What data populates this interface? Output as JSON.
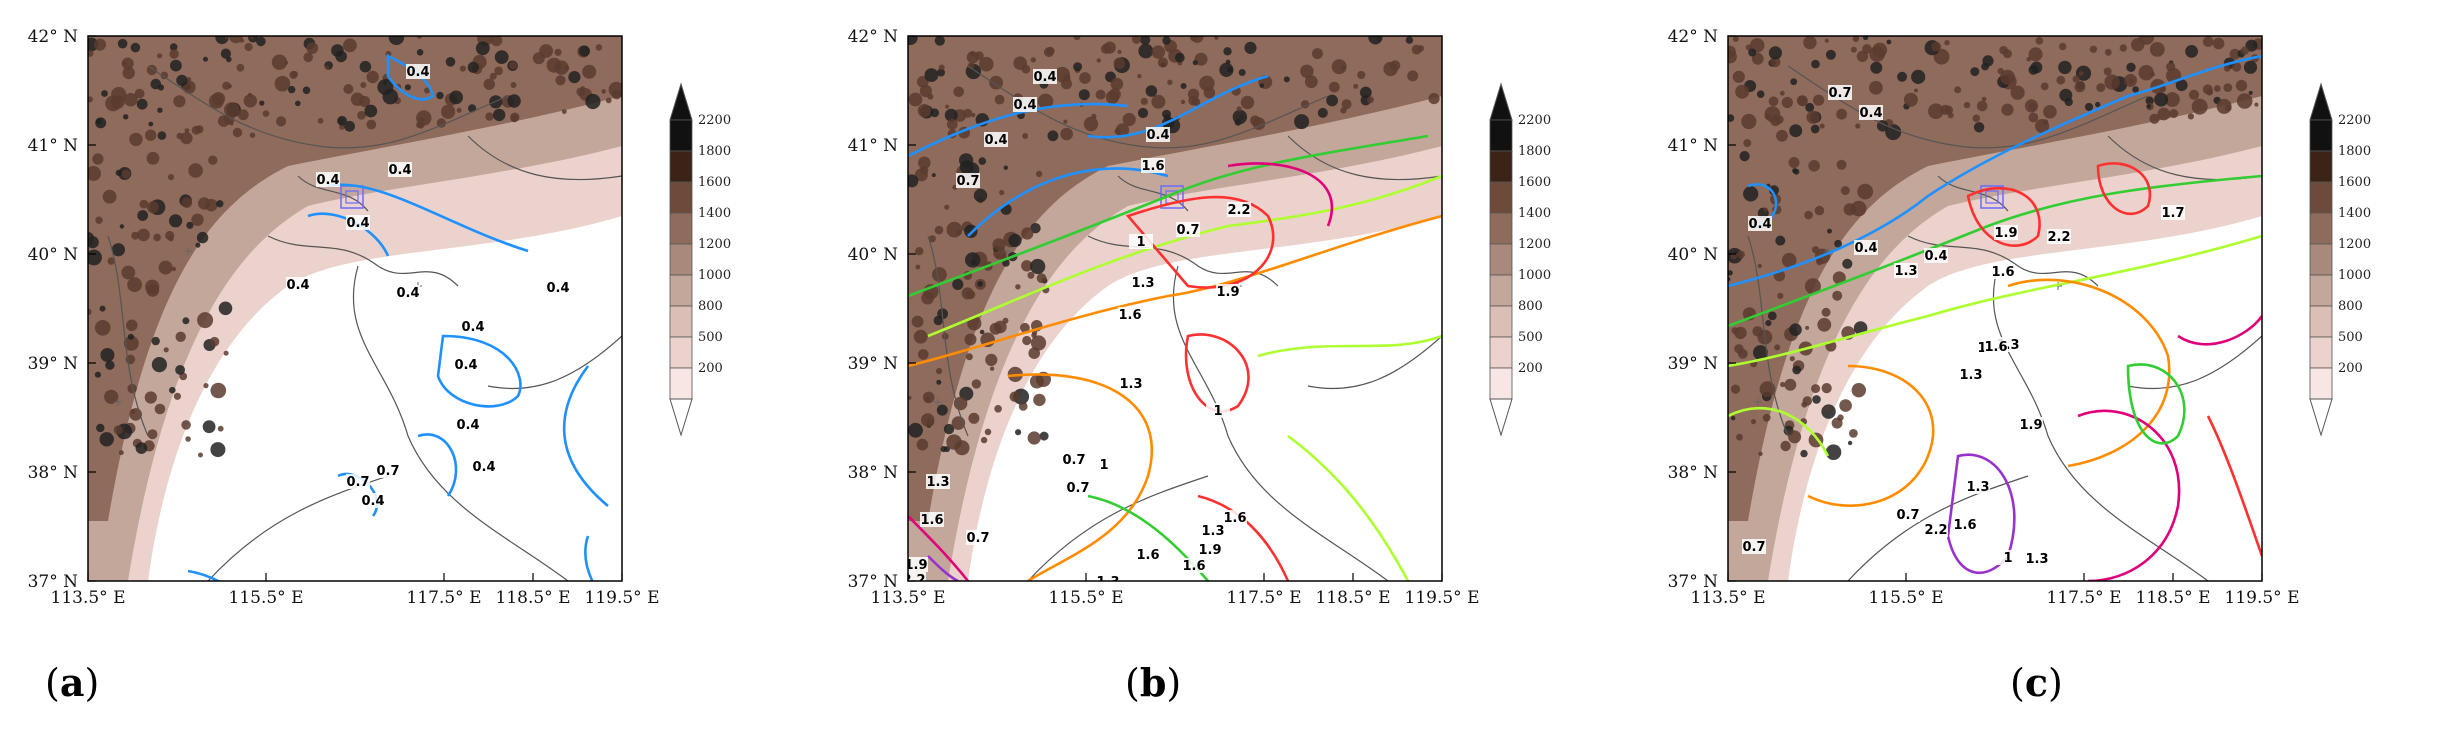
{
  "panels": [
    {
      "id": "a",
      "caption_letter": "a",
      "contour_labels": [
        "0.4",
        "0.4",
        "0.4",
        "0.4",
        "0.4",
        "0.4",
        "0.4",
        "0.4",
        "0.4",
        "0.4",
        "0.4",
        "0.7",
        "0.7",
        "0.4"
      ],
      "contour_colors": [
        "#1e90ff"
      ]
    },
    {
      "id": "b",
      "caption_letter": "b",
      "contour_labels": [
        "0.4",
        "0.4",
        "0.4",
        "0.7",
        "0.4",
        "1.6",
        "0.7",
        "2.2",
        "1",
        "1.3",
        "1.6",
        "1.9",
        "1.3",
        "1",
        "0.7",
        "1.6",
        "1.3",
        "1.9",
        "1.6",
        "1.3",
        "1",
        "0.7",
        "1.3",
        "1.6",
        "1.9",
        "2.2",
        "0.7",
        "1.3",
        "1.6",
        "1.9"
      ],
      "contour_colors": [
        "#1e90ff",
        "#32cd32",
        "#adff2f",
        "#ff8c00",
        "#ff3030",
        "#e0007a",
        "#9932cc"
      ]
    },
    {
      "id": "c",
      "caption_letter": "c",
      "contour_labels": [
        "0.7",
        "0.4",
        "0.4",
        "0.4",
        "0.4",
        "1.3",
        "1.6",
        "1.9",
        "2.2",
        "1.7",
        "1.3",
        "1",
        "1.3",
        "1.6",
        "1.9",
        "0.7",
        "1",
        "1.3",
        "2.2",
        "1.9",
        "1.6",
        "0.7",
        "1",
        "0.7",
        "1.3"
      ],
      "contour_colors": [
        "#1e90ff",
        "#32cd32",
        "#adff2f",
        "#ff8c00",
        "#ff3030",
        "#e0007a",
        "#9932cc"
      ]
    }
  ],
  "lat_labels": [
    "42° N",
    "41° N",
    "40° N",
    "39° N",
    "38° N",
    "37° N"
  ],
  "lon_labels": [
    "113.5° E",
    "115.5° E",
    "117.5° E",
    "118.5° E",
    "119.5° E"
  ],
  "colorbar": {
    "ticks": [
      "2200",
      "1800",
      "1600",
      "1400",
      "1200",
      "1000",
      "800",
      "500",
      "200"
    ],
    "colors": [
      "#111111",
      "#3b2318",
      "#6e4a3a",
      "#8f6b5c",
      "#a9897b",
      "#c3a79b",
      "#dbbfb6",
      "#ecd2cc",
      "#f7e6e3",
      "#ffffff"
    ]
  }
}
